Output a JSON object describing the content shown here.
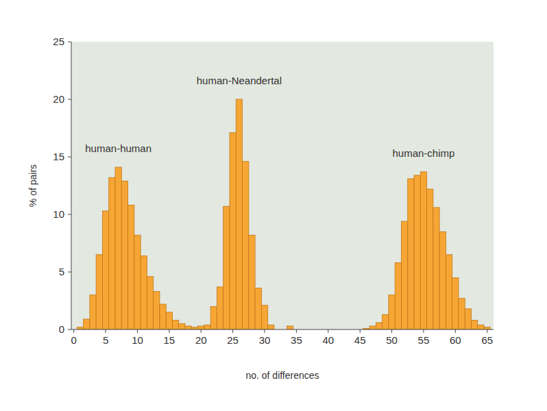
{
  "chart_data": {
    "type": "histogram",
    "x_label": "no. of differences",
    "y_label": "% of pairs",
    "bins": [
      -0.5,
      0.5,
      1.5,
      2.5,
      3.5,
      4.5,
      5.5,
      6.5,
      7.5,
      8.5,
      9.5,
      10.5,
      11.5,
      12.5,
      13.5,
      14.5,
      15.5,
      16.5,
      17.5,
      18.5,
      19.5,
      20.5,
      21.5,
      22.5,
      23.5,
      24.5,
      25.5,
      26.5,
      27.5,
      28.5,
      29.5,
      30.5,
      31.5,
      32.5,
      33.5,
      34.5,
      35.5,
      36.5,
      37.5,
      38.5,
      39.5,
      40.5,
      41.5,
      42.5,
      43.5,
      44.5,
      45.5,
      46.5,
      47.5,
      48.5,
      49.5,
      50.5,
      51.5,
      52.5,
      53.5,
      54.5,
      55.5,
      56.5,
      57.5,
      58.5,
      59.5,
      60.5,
      61.5,
      62.5,
      63.5,
      64.5,
      65.5
    ],
    "series": [
      {
        "name": "human-human",
        "color": "#f6a634",
        "values": [
          0,
          0.2,
          0.9,
          3.0,
          6.5,
          10.3,
          13.2,
          14.1,
          12.9,
          10.8,
          8.2,
          6.4,
          4.6,
          3.3,
          2.2,
          1.5,
          0.8,
          0.5,
          0.3,
          0.2,
          0.3,
          0,
          0,
          0,
          0,
          0,
          0,
          0,
          0,
          0,
          0,
          0,
          0,
          0,
          0,
          0,
          0,
          0,
          0,
          0,
          0,
          0,
          0,
          0,
          0,
          0,
          0,
          0,
          0,
          0,
          0,
          0,
          0,
          0,
          0,
          0,
          0,
          0,
          0,
          0,
          0,
          0,
          0,
          0,
          0,
          0
        ]
      },
      {
        "name": "human-Neandertal",
        "color": "#f6a634",
        "values": [
          0,
          0,
          0,
          0,
          0,
          0,
          0,
          0,
          0,
          0,
          0,
          0,
          0,
          0,
          0,
          0,
          0,
          0,
          0,
          0,
          0,
          0.4,
          2.0,
          3.7,
          10.7,
          17.1,
          20.0,
          14.6,
          8.2,
          3.6,
          2.1,
          0.4,
          0,
          0,
          0.3,
          0,
          0,
          0,
          0,
          0,
          0,
          0,
          0,
          0,
          0,
          0,
          0,
          0,
          0,
          0,
          0,
          0,
          0,
          0,
          0,
          0,
          0,
          0,
          0,
          0,
          0,
          0,
          0,
          0,
          0,
          0
        ]
      },
      {
        "name": "human-chimp",
        "color": "#f6a634",
        "values": [
          0,
          0,
          0,
          0,
          0,
          0,
          0,
          0,
          0,
          0,
          0,
          0,
          0,
          0,
          0,
          0,
          0,
          0,
          0,
          0,
          0,
          0,
          0,
          0,
          0,
          0,
          0,
          0,
          0,
          0,
          0,
          0,
          0,
          0,
          0,
          0,
          0,
          0,
          0,
          0,
          0,
          0,
          0,
          0,
          0,
          0,
          0.1,
          0.3,
          0.6,
          1.3,
          3.0,
          5.8,
          9.4,
          13.1,
          13.4,
          13.7,
          12.2,
          10.6,
          8.5,
          6.5,
          4.5,
          2.7,
          1.8,
          0.8,
          0.4,
          0.2
        ]
      }
    ],
    "xlim": [
      -0.4,
      66
    ],
    "ylim": [
      0,
      25
    ],
    "xticks": [
      0,
      5,
      10,
      15,
      20,
      25,
      30,
      35,
      40,
      45,
      50,
      55,
      60,
      65
    ],
    "yticks": [
      0,
      5,
      10,
      15,
      20,
      25
    ],
    "grid": false
  }
}
